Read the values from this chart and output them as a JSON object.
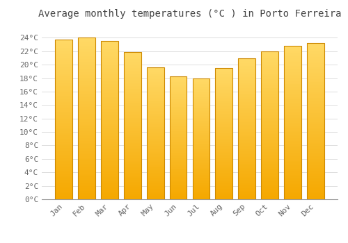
{
  "title": "Average monthly temperatures (°C ) in Porto Ferreira",
  "months": [
    "Jan",
    "Feb",
    "Mar",
    "Apr",
    "May",
    "Jun",
    "Jul",
    "Aug",
    "Sep",
    "Oct",
    "Nov",
    "Dec"
  ],
  "values": [
    23.7,
    24.0,
    23.5,
    21.9,
    19.6,
    18.3,
    18.0,
    19.5,
    20.9,
    22.0,
    22.8,
    23.2
  ],
  "bar_color_top": "#FFD966",
  "bar_color_bottom": "#F5A800",
  "bar_edge_color": "#CC8800",
  "background_color": "#FFFFFF",
  "plot_bg_color": "#FFFFFF",
  "grid_color": "#DDDDDD",
  "text_color": "#666666",
  "title_color": "#444444",
  "ylim": [
    0,
    26
  ],
  "yticks": [
    0,
    2,
    4,
    6,
    8,
    10,
    12,
    14,
    16,
    18,
    20,
    22,
    24
  ],
  "title_fontsize": 10,
  "tick_fontsize": 8,
  "bar_width": 0.75
}
